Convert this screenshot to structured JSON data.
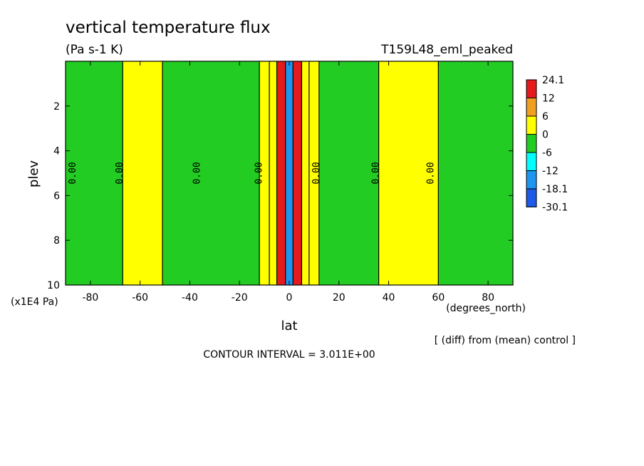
{
  "chart_data": {
    "type": "heatmap",
    "title": "vertical temperature flux",
    "units": "(Pa s-1 K)",
    "experiment": "T159L48_eml_peaked",
    "xlabel": "lat",
    "x_units": "(degrees_north)",
    "ylabel": "plev",
    "y_units": "(x1E4 Pa)",
    "xlim": [
      -90,
      90
    ],
    "ylim": [
      10,
      0
    ],
    "x_ticks": [
      "-80",
      "-60",
      "-40",
      "-20",
      "0",
      "20",
      "40",
      "60",
      "80"
    ],
    "y_ticks": [
      "2",
      "4",
      "6",
      "8",
      "10"
    ],
    "contour_label": "0.00",
    "diff_note": "[ (diff) from (mean) control ]",
    "contour_interval": "CONTOUR INTERVAL = 3.011E+00",
    "legend": [
      {
        "label": "24.1",
        "color": "#e41a1c"
      },
      {
        "label": "12",
        "color": "#f0a020"
      },
      {
        "label": "6",
        "color": "#ffff00"
      },
      {
        "label": "0",
        "color": "#22cc22"
      },
      {
        "label": "-6",
        "color": "#00ffff"
      },
      {
        "label": "-12",
        "color": "#1e96f0"
      },
      {
        "label": "-18.1",
        "color": "#1e5ae6"
      },
      {
        "label": "-30.1",
        "color": ""
      }
    ],
    "bands": [
      {
        "lat": [
          -90,
          -67
        ],
        "value": -1.5
      },
      {
        "lat": [
          -67,
          -51
        ],
        "value": 1.5
      },
      {
        "lat": [
          -51,
          -12
        ],
        "value": -1.5
      },
      {
        "lat": [
          -12,
          -8
        ],
        "value": 1.5
      },
      {
        "lat": [
          -8,
          -5
        ],
        "value": 4.5
      },
      {
        "lat": [
          -5,
          -1.5
        ],
        "value": 15
      },
      {
        "lat": [
          -1.5,
          1.5
        ],
        "value": -15
      },
      {
        "lat": [
          1.5,
          5
        ],
        "value": 15
      },
      {
        "lat": [
          5,
          8
        ],
        "value": 4.5
      },
      {
        "lat": [
          8,
          12
        ],
        "value": 1.5
      },
      {
        "lat": [
          12,
          36
        ],
        "value": -1.5
      },
      {
        "lat": [
          36,
          60
        ],
        "value": 1.5
      },
      {
        "lat": [
          60,
          90
        ],
        "value": -1.5
      }
    ]
  }
}
